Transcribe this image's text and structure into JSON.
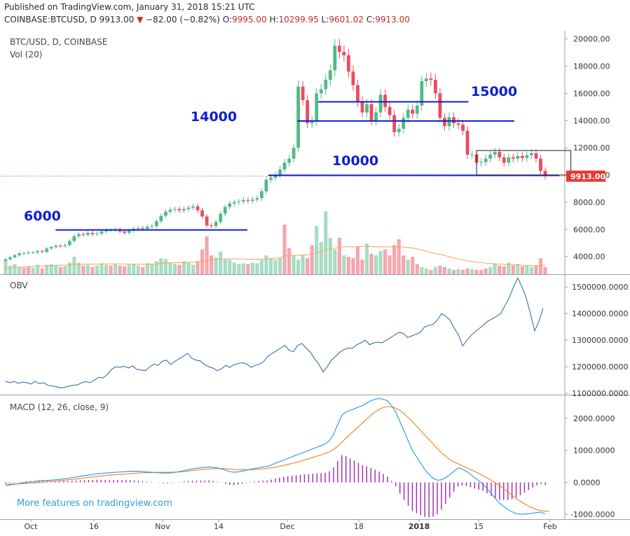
{
  "header": {
    "published": "Published on TradingView.com, January 31, 2018 15:21 UTC",
    "symbol": "COINBASE:BTCUSD, D",
    "close_label": "9913.00",
    "change_arrow": "▼",
    "change": "−82.00 (−0.82%)",
    "o_label": "O:",
    "o_value": "9995.00",
    "h_label": "H:",
    "h_value": "10299.95",
    "l_label": "L:",
    "l_value": "9601.02",
    "c_label": "C:",
    "c_value": "9913.00"
  },
  "colors": {
    "up": "#53b987",
    "down": "#eb4d5c",
    "vol_up": "#a9dcc3",
    "vol_down": "#f5a6ae",
    "vol_ma": "#f7a35c",
    "obv": "#2962a0",
    "macd": "#2196f3",
    "signal": "#f57f17",
    "hist": "#9c27b0",
    "level": "#0c1fd1",
    "price_label_bg": "#e53935",
    "watermark": "#29a1d9"
  },
  "chart_data": [
    {
      "type": "candlestick",
      "title": "BTC/USD, D, COINBASE",
      "volume_label": "Vol (20)",
      "y_ticks": [
        "20000.00",
        "18000.00",
        "16000.00",
        "14000.00",
        "12000.00",
        "10000.00",
        "8000.00",
        "6000.00",
        "4000.00"
      ],
      "ylim": [
        2700,
        20600
      ],
      "x_ticks": [
        "Oct",
        "16",
        "Nov",
        "14",
        "Dec",
        "18",
        "2018",
        "15",
        "Feb"
      ],
      "last_price_label": "9913.00",
      "levels": [
        {
          "label": "6000",
          "value": 5960
        },
        {
          "label": "14000",
          "value": 13970
        },
        {
          "label": "15000",
          "value": 15380
        },
        {
          "label": "10000",
          "value": 9980
        }
      ],
      "box": {
        "from_day": 103,
        "to_day": 123,
        "price_low": 10000,
        "price_high": 11800
      },
      "closes": [
        3800,
        3950,
        4100,
        4240,
        4250,
        4300,
        4310,
        4400,
        4350,
        4600,
        4700,
        4800,
        4780,
        4850,
        5150,
        5500,
        5650,
        5600,
        5750,
        5650,
        5700,
        5850,
        5950,
        5950,
        6000,
        5850,
        5750,
        5900,
        6050,
        6100,
        6050,
        6200,
        6250,
        6600,
        7000,
        7300,
        7450,
        7500,
        7400,
        7500,
        7600,
        7700,
        7400,
        6950,
        6300,
        6250,
        6550,
        7150,
        7650,
        7900,
        8000,
        8050,
        8150,
        8100,
        8200,
        8300,
        8800,
        9650,
        9800,
        10000,
        10400,
        10900,
        11200,
        12000,
        16500,
        15500,
        13800,
        14000,
        16000,
        16300,
        17000,
        17700,
        19500,
        19050,
        18800,
        17600,
        16600,
        15400,
        14600,
        15200,
        14000,
        14600,
        15900,
        15000,
        14400,
        13150,
        13400,
        14200,
        14800,
        14500,
        15100,
        16900,
        17100,
        17000,
        16000,
        14200,
        13600,
        14250,
        13800,
        13700,
        13250,
        11500,
        11500,
        10900,
        10950,
        11200,
        11500,
        11700,
        11300,
        10900,
        11300,
        11200,
        11400,
        11250,
        11450,
        11600,
        11200,
        10300,
        9913
      ],
      "volume": [
        {
          "v": 3900,
          "up": true
        },
        {
          "v": 3600,
          "up": true
        },
        {
          "v": 3700,
          "up": true
        },
        {
          "v": 3500,
          "up": true
        },
        {
          "v": 3450,
          "up": false
        },
        {
          "v": 3550,
          "up": false
        },
        {
          "v": 3450,
          "up": true
        },
        {
          "v": 3650,
          "up": true
        },
        {
          "v": 3400,
          "up": false
        },
        {
          "v": 3650,
          "up": true
        },
        {
          "v": 3700,
          "up": true
        },
        {
          "v": 3600,
          "up": true
        },
        {
          "v": 3500,
          "up": false
        },
        {
          "v": 3550,
          "up": true
        },
        {
          "v": 3800,
          "up": true
        },
        {
          "v": 4200,
          "up": true
        },
        {
          "v": 3800,
          "up": true
        },
        {
          "v": 3600,
          "up": false
        },
        {
          "v": 3650,
          "up": true
        },
        {
          "v": 3500,
          "up": false
        },
        {
          "v": 3600,
          "up": true
        },
        {
          "v": 3750,
          "up": true
        },
        {
          "v": 3650,
          "up": true
        },
        {
          "v": 3600,
          "up": false
        },
        {
          "v": 3700,
          "up": true
        },
        {
          "v": 3600,
          "up": false
        },
        {
          "v": 3550,
          "up": false
        },
        {
          "v": 3650,
          "up": true
        },
        {
          "v": 3700,
          "up": true
        },
        {
          "v": 3600,
          "up": true
        },
        {
          "v": 3500,
          "up": false
        },
        {
          "v": 3750,
          "up": true
        },
        {
          "v": 3700,
          "up": true
        },
        {
          "v": 3900,
          "up": true
        },
        {
          "v": 4100,
          "up": true
        },
        {
          "v": 4050,
          "up": true
        },
        {
          "v": 3800,
          "up": true
        },
        {
          "v": 3700,
          "up": true
        },
        {
          "v": 3650,
          "up": false
        },
        {
          "v": 3900,
          "up": true
        },
        {
          "v": 3800,
          "up": true
        },
        {
          "v": 3650,
          "up": true
        },
        {
          "v": 3900,
          "up": false
        },
        {
          "v": 4700,
          "up": false
        },
        {
          "v": 5600,
          "up": false
        },
        {
          "v": 4300,
          "up": false
        },
        {
          "v": 4150,
          "up": true
        },
        {
          "v": 4550,
          "up": true
        },
        {
          "v": 4050,
          "up": true
        },
        {
          "v": 4000,
          "up": true
        },
        {
          "v": 3800,
          "up": true
        },
        {
          "v": 3700,
          "up": true
        },
        {
          "v": 3750,
          "up": true
        },
        {
          "v": 3700,
          "up": false
        },
        {
          "v": 3800,
          "up": true
        },
        {
          "v": 3750,
          "up": true
        },
        {
          "v": 4000,
          "up": true
        },
        {
          "v": 4300,
          "up": true
        },
        {
          "v": 4100,
          "up": true
        },
        {
          "v": 4000,
          "up": true
        },
        {
          "v": 4100,
          "up": true
        },
        {
          "v": 6400,
          "up": false
        },
        {
          "v": 4800,
          "up": false
        },
        {
          "v": 4300,
          "up": true
        },
        {
          "v": 4000,
          "up": true
        },
        {
          "v": 4300,
          "up": true
        },
        {
          "v": 4100,
          "up": false
        },
        {
          "v": 5000,
          "up": false
        },
        {
          "v": 6300,
          "up": true
        },
        {
          "v": 5200,
          "up": true
        },
        {
          "v": 7300,
          "up": true
        },
        {
          "v": 5500,
          "up": true
        },
        {
          "v": 4700,
          "up": true
        },
        {
          "v": 5500,
          "up": false
        },
        {
          "v": 4300,
          "up": true
        },
        {
          "v": 4200,
          "up": false
        },
        {
          "v": 4100,
          "up": false
        },
        {
          "v": 4900,
          "up": false
        },
        {
          "v": 4000,
          "up": false
        },
        {
          "v": 5100,
          "up": true
        },
        {
          "v": 4400,
          "up": false
        },
        {
          "v": 4300,
          "up": true
        },
        {
          "v": 4600,
          "up": true
        },
        {
          "v": 4700,
          "up": false
        },
        {
          "v": 4300,
          "up": false
        },
        {
          "v": 5000,
          "up": false
        },
        {
          "v": 5400,
          "up": false
        },
        {
          "v": 4300,
          "up": false
        },
        {
          "v": 4000,
          "up": true
        },
        {
          "v": 4200,
          "up": false
        },
        {
          "v": 3700,
          "up": false
        },
        {
          "v": 3500,
          "up": true
        },
        {
          "v": 3400,
          "up": true
        },
        {
          "v": 3300,
          "up": false
        },
        {
          "v": 3500,
          "up": true
        },
        {
          "v": 3600,
          "up": false
        },
        {
          "v": 3500,
          "up": false
        },
        {
          "v": 3400,
          "up": true
        },
        {
          "v": 3300,
          "up": false
        },
        {
          "v": 3350,
          "up": true
        },
        {
          "v": 3300,
          "up": false
        },
        {
          "v": 3400,
          "up": false
        },
        {
          "v": 3350,
          "up": true
        },
        {
          "v": 3300,
          "up": false
        },
        {
          "v": 3300,
          "up": false
        },
        {
          "v": 3400,
          "up": false
        },
        {
          "v": 3500,
          "up": true
        },
        {
          "v": 3700,
          "up": true
        },
        {
          "v": 3600,
          "up": false
        },
        {
          "v": 3550,
          "up": false
        },
        {
          "v": 3800,
          "up": true
        },
        {
          "v": 3600,
          "up": false
        },
        {
          "v": 3700,
          "up": true
        },
        {
          "v": 3550,
          "up": false
        },
        {
          "v": 3600,
          "up": true
        },
        {
          "v": 3500,
          "up": true
        },
        {
          "v": 3600,
          "up": false
        },
        {
          "v": 4100,
          "up": false
        },
        {
          "v": 3500,
          "up": false
        }
      ],
      "volume_ma": [
        3400,
        3450,
        3500,
        3500,
        3520,
        3530,
        3550,
        3560,
        3560,
        3580,
        3600,
        3610,
        3620,
        3620,
        3640,
        3670,
        3690,
        3690,
        3700,
        3700,
        3700,
        3710,
        3710,
        3710,
        3720,
        3710,
        3700,
        3700,
        3700,
        3700,
        3690,
        3700,
        3700,
        3720,
        3750,
        3780,
        3790,
        3790,
        3790,
        3810,
        3820,
        3820,
        3830,
        3880,
        3960,
        3990,
        4000,
        4040,
        4050,
        4060,
        4060,
        4050,
        4040,
        4030,
        4030,
        4030,
        4040,
        4070,
        4080,
        4090,
        4120,
        4250,
        4300,
        4300,
        4300,
        4320,
        4330,
        4400,
        4500,
        4550,
        4680,
        4750,
        4780,
        4850,
        4880,
        4880,
        4870,
        4900,
        4900,
        4920,
        4900,
        4880,
        4880,
        4880,
        4870,
        4880,
        4890,
        4860,
        4830,
        4800,
        4730,
        4660,
        4580,
        4500,
        4420,
        4360,
        4290,
        4200,
        4120,
        4060,
        3990,
        3920,
        3880,
        3840,
        3800,
        3760,
        3730,
        3720,
        3700,
        3680,
        3660,
        3650,
        3640,
        3620,
        3600,
        3590,
        3590,
        3600,
        3620
      ],
      "xlabel": "",
      "ylabel": ""
    },
    {
      "type": "line",
      "title": "OBV",
      "y_ticks": [
        "1500000.0000",
        "1400000.0000",
        "1300000.0000",
        "1200000.0000",
        "1100000.0000"
      ],
      "ylim": [
        1095000,
        1545000
      ],
      "values": [
        1145000,
        1140000,
        1145000,
        1138000,
        1142000,
        1140000,
        1135000,
        1145000,
        1136000,
        1140000,
        1130000,
        1128000,
        1125000,
        1120000,
        1123000,
        1127000,
        1130000,
        1132000,
        1140000,
        1144000,
        1140000,
        1150000,
        1160000,
        1158000,
        1170000,
        1190000,
        1200000,
        1198000,
        1202000,
        1195000,
        1203000,
        1190000,
        1188000,
        1185000,
        1198000,
        1210000,
        1205000,
        1220000,
        1225000,
        1208000,
        1220000,
        1230000,
        1240000,
        1250000,
        1232000,
        1225000,
        1222000,
        1208000,
        1200000,
        1195000,
        1185000,
        1192000,
        1205000,
        1198000,
        1208000,
        1212000,
        1215000,
        1210000,
        1198000,
        1205000,
        1210000,
        1220000,
        1240000,
        1250000,
        1260000,
        1270000,
        1280000,
        1262000,
        1256000,
        1280000,
        1288000,
        1270000,
        1255000,
        1230000,
        1210000,
        1180000,
        1200000,
        1225000,
        1240000,
        1255000,
        1265000,
        1270000,
        1270000,
        1283000,
        1290000,
        1300000,
        1283000,
        1290000,
        1292000,
        1290000,
        1300000,
        1310000,
        1320000,
        1330000,
        1325000,
        1310000,
        1316000,
        1322000,
        1330000,
        1350000,
        1355000,
        1360000,
        1375000,
        1400000,
        1390000,
        1375000,
        1345000,
        1320000,
        1278000,
        1300000,
        1318000,
        1333000,
        1345000,
        1358000,
        1372000,
        1380000,
        1390000,
        1400000,
        1430000,
        1460000,
        1500000,
        1534000,
        1500000,
        1460000,
        1400000,
        1335000,
        1370000,
        1420000
      ],
      "xlabel": "",
      "ylabel": ""
    },
    {
      "type": "line",
      "title": "MACD (12, 26, close, 9)",
      "y_ticks": [
        "2000.0000",
        "1000.0000",
        "0.0000",
        "-1000.0000"
      ],
      "ylim": [
        -1150,
        2720
      ],
      "macd": [
        -100,
        -80,
        -60,
        -40,
        -20,
        0,
        20,
        30,
        50,
        60,
        60,
        70,
        80,
        90,
        110,
        130,
        150,
        170,
        190,
        210,
        230,
        250,
        270,
        280,
        290,
        300,
        310,
        320,
        330,
        340,
        345,
        350,
        345,
        340,
        330,
        320,
        310,
        300,
        290,
        290,
        300,
        320,
        340,
        370,
        400,
        420,
        440,
        460,
        470,
        480,
        470,
        450,
        420,
        380,
        340,
        320,
        330,
        350,
        380,
        410,
        430,
        460,
        480,
        500,
        540,
        600,
        650,
        700,
        750,
        800,
        850,
        900,
        950,
        1000,
        1050,
        1100,
        1150,
        1200,
        1300,
        1500,
        1800,
        2100,
        2200,
        2250,
        2300,
        2350,
        2400,
        2480,
        2550,
        2600,
        2620,
        2600,
        2550,
        2400,
        2200,
        1900,
        1600,
        1300,
        1000,
        800,
        600,
        400,
        250,
        130,
        70,
        80,
        150,
        240,
        350,
        450,
        420,
        350,
        250,
        150,
        50,
        -50,
        -200,
        -350,
        -500,
        -650,
        -750,
        -850,
        -920,
        -970,
        -990,
        -990,
        -980,
        -960,
        -940,
        -930,
        -980
      ],
      "signal": [
        -60,
        -55,
        -50,
        -45,
        -40,
        -30,
        -20,
        -10,
        0,
        10,
        20,
        30,
        40,
        50,
        65,
        80,
        95,
        110,
        125,
        140,
        155,
        170,
        185,
        200,
        215,
        225,
        235,
        245,
        255,
        265,
        275,
        285,
        292,
        298,
        302,
        305,
        308,
        310,
        312,
        315,
        318,
        322,
        330,
        340,
        355,
        370,
        385,
        400,
        410,
        420,
        425,
        430,
        430,
        428,
        420,
        410,
        400,
        395,
        395,
        398,
        405,
        415,
        425,
        440,
        455,
        475,
        500,
        530,
        560,
        590,
        625,
        660,
        700,
        740,
        780,
        820,
        860,
        900,
        950,
        1030,
        1130,
        1250,
        1380,
        1500,
        1620,
        1740,
        1860,
        1980,
        2100,
        2200,
        2280,
        2340,
        2370,
        2360,
        2320,
        2250,
        2150,
        2030,
        1900,
        1760,
        1620,
        1480,
        1340,
        1200,
        1060,
        930,
        820,
        720,
        640,
        580,
        520,
        460,
        400,
        340,
        280,
        210,
        140,
        70,
        -10,
        -100,
        -200,
        -300,
        -400,
        -500,
        -590,
        -670,
        -740,
        -800,
        -850,
        -880,
        -900,
        -910
      ],
      "xlabel": "",
      "ylabel": ""
    }
  ],
  "watermark": "More features on tradingview.com"
}
